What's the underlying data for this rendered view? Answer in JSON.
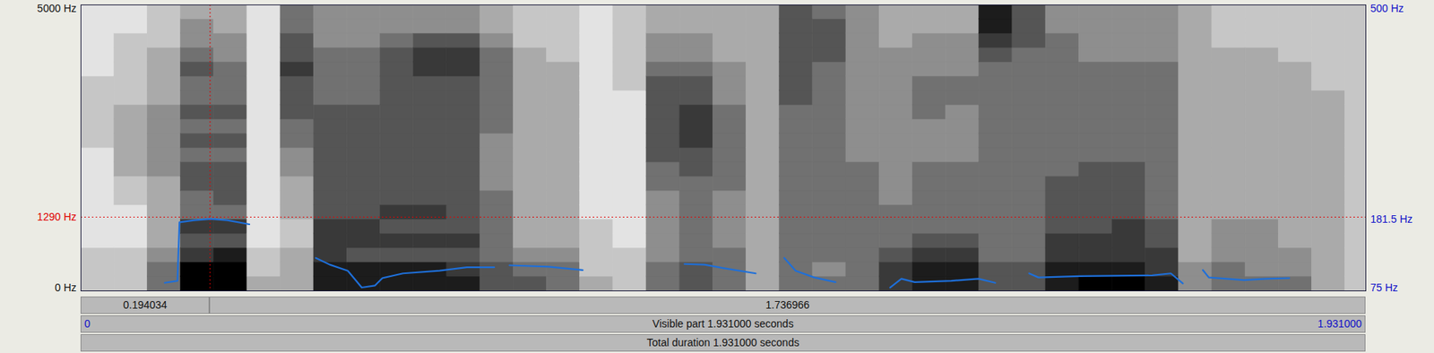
{
  "chart_data": {
    "type": "spectrogram",
    "xlim": [
      0,
      1.931
    ],
    "xticks": [
      0,
      {
        "value": 1.931,
        "label": "1.931000"
      }
    ],
    "ylim": [
      0,
      5000
    ],
    "yticks": [
      {
        "value": 0,
        "label": "0 Hz"
      },
      {
        "value": 5000,
        "label": "5000 Hz"
      }
    ],
    "y2lim": [
      75,
      500
    ],
    "y2ticks": [
      {
        "value": 75,
        "label": "75 Hz"
      },
      {
        "value": 500,
        "label": "500 Hz"
      }
    ],
    "grid": false,
    "cells": {
      "range": [
        0,
        9
      ],
      "times": [
        0,
        0.05,
        0.1,
        0.15,
        0.2,
        0.25,
        0.3,
        0.35,
        0.4,
        0.45,
        0.5,
        0.55,
        0.6,
        0.65,
        0.7,
        0.75,
        0.8,
        0.85,
        0.9,
        0.95,
        1,
        1.05,
        1.1,
        1.15,
        1.2,
        1.25,
        1.3,
        1.35,
        1.4,
        1.45,
        1.5,
        1.55,
        1.6,
        1.65,
        1.7,
        1.75,
        1.8,
        1.85,
        1.9,
        1.931
      ],
      "frequencies": [
        0,
        250,
        500,
        750,
        1000,
        1250,
        1500,
        1750,
        2000,
        2250,
        2500,
        2750,
        3000,
        3250,
        3500,
        3750,
        4000,
        4250,
        4500,
        4750,
        5000
      ],
      "intensity": [
        [
          2,
          2,
          2,
          1,
          1,
          1,
          1,
          1,
          1,
          1,
          2,
          2,
          2,
          2,
          2,
          1,
          1,
          1,
          1,
          1
        ],
        [
          2,
          2,
          2,
          1,
          1,
          1,
          2,
          2,
          3,
          3,
          3,
          3,
          3,
          2,
          2,
          2,
          2,
          2,
          1,
          1
        ],
        [
          5,
          5,
          4,
          3,
          3,
          3,
          3,
          3,
          4,
          4,
          4,
          4,
          4,
          3,
          3,
          3,
          3,
          2,
          2,
          2
        ],
        [
          9,
          9,
          7,
          6,
          7,
          5,
          5,
          6,
          6,
          5,
          6,
          5,
          6,
          5,
          5,
          6,
          5,
          4,
          4,
          3
        ],
        [
          9,
          9,
          8,
          6,
          7,
          5,
          6,
          6,
          6,
          5,
          6,
          5,
          6,
          5,
          5,
          5,
          4,
          4,
          3,
          3
        ],
        [
          3,
          2,
          2,
          1,
          1,
          1,
          1,
          1,
          1,
          1,
          1,
          1,
          1,
          1,
          1,
          1,
          1,
          1,
          1,
          1
        ],
        [
          3,
          3,
          3,
          2,
          2,
          3,
          3,
          3,
          4,
          4,
          5,
          5,
          6,
          6,
          6,
          7,
          6,
          6,
          5,
          5
        ],
        [
          8,
          8,
          7,
          7,
          7,
          6,
          6,
          6,
          6,
          6,
          6,
          6,
          6,
          5,
          5,
          5,
          5,
          4,
          4,
          4
        ],
        [
          8,
          8,
          6,
          7,
          7,
          6,
          6,
          6,
          6,
          6,
          6,
          6,
          6,
          5,
          5,
          5,
          5,
          4,
          4,
          4
        ],
        [
          8,
          8,
          6,
          7,
          6,
          7,
          6,
          6,
          6,
          6,
          6,
          6,
          6,
          6,
          6,
          6,
          6,
          5,
          4,
          4
        ],
        [
          8,
          8,
          6,
          7,
          6,
          7,
          6,
          6,
          6,
          6,
          6,
          6,
          6,
          6,
          6,
          7,
          7,
          6,
          4,
          4
        ],
        [
          8,
          7,
          6,
          7,
          6,
          6,
          6,
          6,
          6,
          6,
          6,
          6,
          6,
          6,
          6,
          7,
          7,
          6,
          4,
          4
        ],
        [
          6,
          6,
          5,
          5,
          5,
          5,
          5,
          4,
          4,
          4,
          4,
          5,
          5,
          5,
          5,
          5,
          5,
          4,
          3,
          3
        ],
        [
          6,
          5,
          4,
          3,
          3,
          3,
          3,
          3,
          3,
          3,
          3,
          3,
          3,
          3,
          3,
          3,
          3,
          2,
          2,
          2
        ],
        [
          5,
          5,
          4,
          3,
          3,
          3,
          3,
          3,
          3,
          3,
          3,
          3,
          3,
          3,
          3,
          3,
          2,
          2,
          2,
          2
        ],
        [
          3,
          2,
          2,
          2,
          2,
          1,
          1,
          1,
          1,
          1,
          1,
          1,
          1,
          1,
          1,
          1,
          1,
          1,
          1,
          1
        ],
        [
          2,
          2,
          2,
          1,
          1,
          1,
          1,
          1,
          1,
          1,
          1,
          1,
          1,
          1,
          2,
          2,
          2,
          2,
          2,
          2
        ],
        [
          5,
          5,
          4,
          4,
          4,
          4,
          4,
          5,
          5,
          6,
          6,
          6,
          6,
          6,
          6,
          5,
          4,
          4,
          3,
          3
        ],
        [
          6,
          6,
          5,
          5,
          5,
          5,
          5,
          5,
          6,
          6,
          7,
          7,
          7,
          6,
          6,
          5,
          4,
          4,
          3,
          3
        ],
        [
          5,
          5,
          5,
          4,
          4,
          4,
          4,
          5,
          5,
          5,
          5,
          5,
          5,
          4,
          4,
          4,
          3,
          3,
          3,
          3
        ],
        [
          3,
          3,
          3,
          3,
          3,
          3,
          3,
          3,
          3,
          3,
          3,
          3,
          3,
          3,
          3,
          3,
          3,
          3,
          3,
          3
        ],
        [
          5,
          5,
          5,
          5,
          5,
          5,
          5,
          5,
          5,
          5,
          5,
          5,
          5,
          6,
          6,
          6,
          6,
          6,
          6,
          6
        ],
        [
          5,
          4,
          5,
          5,
          5,
          5,
          5,
          5,
          5,
          5,
          5,
          5,
          5,
          5,
          5,
          5,
          6,
          6,
          6,
          5
        ],
        [
          5,
          5,
          5,
          5,
          5,
          5,
          5,
          5,
          5,
          4,
          4,
          4,
          4,
          4,
          4,
          4,
          4,
          4,
          4,
          4
        ],
        [
          7,
          7,
          6,
          5,
          5,
          5,
          4,
          4,
          4,
          4,
          4,
          4,
          4,
          4,
          4,
          4,
          4,
          3,
          3,
          3
        ],
        [
          8,
          8,
          7,
          6,
          5,
          5,
          5,
          5,
          5,
          4,
          4,
          4,
          5,
          5,
          5,
          4,
          4,
          4,
          3,
          3
        ],
        [
          8,
          8,
          7,
          6,
          5,
          5,
          5,
          5,
          5,
          4,
          4,
          4,
          4,
          5,
          5,
          4,
          4,
          4,
          3,
          3
        ],
        [
          6,
          6,
          5,
          5,
          5,
          5,
          5,
          5,
          5,
          5,
          5,
          5,
          5,
          5,
          5,
          5,
          6,
          7,
          8,
          8
        ],
        [
          6,
          6,
          5,
          5,
          5,
          5,
          5,
          5,
          5,
          5,
          5,
          5,
          5,
          5,
          5,
          5,
          5,
          6,
          6,
          6
        ],
        [
          8,
          8,
          7,
          7,
          6,
          6,
          6,
          6,
          5,
          5,
          5,
          5,
          5,
          5,
          5,
          5,
          5,
          5,
          4,
          4
        ],
        [
          9,
          8,
          7,
          7,
          6,
          6,
          6,
          6,
          6,
          5,
          5,
          5,
          5,
          5,
          5,
          5,
          4,
          4,
          4,
          4
        ],
        [
          9,
          8,
          7,
          7,
          7,
          6,
          6,
          6,
          6,
          5,
          5,
          5,
          5,
          5,
          5,
          5,
          4,
          4,
          4,
          4
        ],
        [
          8,
          7,
          7,
          6,
          6,
          5,
          5,
          5,
          5,
          5,
          5,
          5,
          5,
          5,
          5,
          5,
          4,
          4,
          4,
          4
        ],
        [
          4,
          4,
          3,
          3,
          3,
          3,
          3,
          3,
          3,
          3,
          3,
          3,
          3,
          3,
          3,
          3,
          3,
          3,
          3,
          3
        ],
        [
          5,
          5,
          4,
          4,
          4,
          3,
          3,
          3,
          3,
          3,
          3,
          3,
          3,
          3,
          3,
          3,
          3,
          2,
          2,
          2
        ],
        [
          5,
          4,
          4,
          4,
          4,
          3,
          3,
          3,
          3,
          3,
          3,
          3,
          3,
          3,
          3,
          3,
          3,
          2,
          2,
          2
        ],
        [
          5,
          4,
          4,
          3,
          3,
          3,
          3,
          3,
          3,
          3,
          3,
          3,
          3,
          3,
          3,
          3,
          2,
          2,
          2,
          2
        ],
        [
          3,
          3,
          3,
          3,
          3,
          3,
          3,
          3,
          3,
          3,
          3,
          3,
          3,
          3,
          2,
          2,
          2,
          2,
          2,
          2
        ],
        [
          2,
          2,
          2,
          2,
          2,
          2,
          2,
          2,
          2,
          2,
          2,
          2,
          2,
          2,
          2,
          2,
          2,
          2,
          2,
          2
        ]
      ]
    },
    "series": [
      {
        "type": "line",
        "axis": "y2",
        "color": "#1e6fd9",
        "x": [
          0.126,
          0.145,
          0.148,
          0.17,
          0.195,
          0.22,
          0.253,
          null,
          0.353,
          0.374,
          0.401,
          0.422,
          0.442,
          0.453,
          0.484,
          0.539,
          0.58,
          0.621,
          null,
          0.644,
          0.703,
          0.754,
          null,
          0.907,
          0.937,
          0.965,
          1.014,
          null,
          1.057,
          1.074,
          1.102,
          1.134,
          null,
          1.216,
          1.233,
          1.253,
          1.308,
          1.349,
          1.374,
          null,
          1.425,
          1.439,
          1.501,
          1.61,
          1.638,
          1.656,
          null,
          1.686,
          1.695,
          1.748,
          1.782,
          1.816
        ],
        "values": [
          87,
          90,
          177,
          180,
          182,
          180,
          174,
          null,
          124,
          114,
          105,
          80,
          83,
          94,
          101,
          105,
          110,
          110,
          null,
          113,
          111,
          106,
          null,
          115,
          114,
          109,
          101,
          null,
          124,
          105,
          95,
          88,
          null,
          80,
          93,
          88,
          90,
          93,
          87,
          null,
          101,
          95,
          97,
          98,
          101,
          86,
          null,
          106,
          95,
          91,
          93,
          94
        ]
      }
    ],
    "cursor": {
      "time": 0.194034,
      "frequency": 1290,
      "frequency_label": "1290 Hz",
      "pitch": 181.5,
      "pitch_label": "181.5 Hz",
      "color": "#e00000"
    },
    "selection": [
      0.194034,
      1.736966
    ],
    "visible_part": "Visible part 1.931000 seconds",
    "total_duration": "Total duration 1.931000 seconds"
  }
}
